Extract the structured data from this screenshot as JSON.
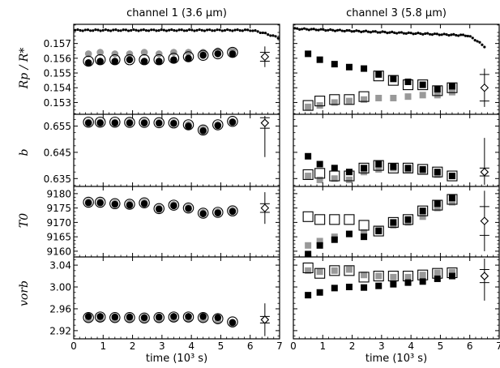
{
  "chart_data": {
    "type": "scatter",
    "x_ticks": [
      "0",
      "1",
      "2",
      "3",
      "4",
      "5",
      "6",
      "7"
    ],
    "xlim": [
      0,
      7
    ],
    "columns": [
      {
        "title": "channel 1 (3.6 μm)",
        "xlabel": "time (10³ s)",
        "rows": [
          {
            "ylabel": "Rp / R*",
            "ylim": [
              0.1522,
              0.1583
            ],
            "yticks": [
              0.153,
              0.154,
              0.155,
              0.156,
              0.157
            ],
            "ytick_labels": [
              "0.153",
              "0.154",
              "0.155",
              "0.156",
              "0.157"
            ],
            "x": [
              0.5,
              0.9,
              1.4,
              1.9,
              2.4,
              2.9,
              3.4,
              3.9,
              4.4,
              4.9,
              5.4
            ],
            "open_circle": [
              0.1558,
              0.1559,
              0.1559,
              0.1559,
              0.1559,
              0.1559,
              0.156,
              0.1561,
              0.1562,
              0.1563,
              0.1564
            ],
            "filled_black": [
              0.1557,
              0.1558,
              0.1558,
              0.1559,
              0.1558,
              0.1558,
              0.1559,
              0.156,
              0.1562,
              0.1563,
              0.1563
            ],
            "filled_gray": [
              0.1563,
              0.1564,
              0.1563,
              0.1563,
              0.1564,
              0.1563,
              0.1564,
              0.1564,
              0.1564,
              0.1565,
              0.1565
            ],
            "summary": {
              "x": 6.5,
              "y": 0.1561,
              "err": 0.0007,
              "err_inner": 0.0003
            },
            "light_curve": {
              "x_start": 0.05,
              "x_end": 6.95,
              "level": 0.1579,
              "drop_start": 6.0,
              "drop_to": 0.1574
            }
          },
          {
            "ylabel": "b",
            "ylim": [
              0.632,
              0.6595
            ],
            "yticks": [
              0.635,
              0.645,
              0.655
            ],
            "ytick_labels": [
              "0.635",
              "0.645",
              "0.655"
            ],
            "x": [
              0.5,
              0.9,
              1.4,
              1.9,
              2.4,
              2.9,
              3.4,
              3.9,
              4.4,
              4.9,
              5.4
            ],
            "open_circle": [
              0.6565,
              0.6565,
              0.6565,
              0.6564,
              0.6564,
              0.6563,
              0.6562,
              0.6555,
              0.6535,
              0.6555,
              0.6568
            ],
            "filled_black": [
              0.6562,
              0.6562,
              0.6562,
              0.6562,
              0.6562,
              0.6561,
              0.656,
              0.655,
              0.6532,
              0.6552,
              0.6565
            ],
            "filled_gray": [
              0.6565,
              0.6565,
              0.6565,
              0.6565,
              0.6565,
              0.6564,
              0.6563,
              0.6556,
              0.6538,
              0.6556,
              0.6567
            ],
            "summary": {
              "x": 6.5,
              "y": 0.6562,
              "err": 0.013,
              "err_inner": 0.002
            }
          },
          {
            "ylabel": "T0",
            "ylim": [
              9158.0,
              9182.5
            ],
            "yticks": [
              9160,
              9165,
              9170,
              9175,
              9180
            ],
            "ytick_labels": [
              "9160",
              "9165",
              "9170",
              "9175",
              "9180"
            ],
            "x": [
              0.5,
              0.9,
              1.4,
              1.9,
              2.4,
              2.9,
              3.4,
              3.9,
              4.4,
              4.9,
              5.4
            ],
            "open_circle": [
              9177.0,
              9177.0,
              9176.5,
              9176.3,
              9176.8,
              9174.8,
              9176.0,
              9175.0,
              9173.2,
              9173.5,
              9174.0
            ],
            "filled_black": [
              9176.8,
              9176.8,
              9176.3,
              9176.0,
              9176.5,
              9174.6,
              9175.8,
              9174.8,
              9173.0,
              9173.3,
              9173.8
            ],
            "filled_gray": [
              9177.2,
              9177.2,
              9176.7,
              9176.5,
              9177.0,
              9175.0,
              9176.2,
              9175.2,
              9173.4,
              9173.7,
              9174.2
            ],
            "summary": {
              "x": 6.5,
              "y": 9175.0,
              "err": 5.5,
              "err_inner": 1.5
            }
          },
          {
            "ylabel": "vorb",
            "ylim": [
              2.905,
              3.055
            ],
            "yticks": [
              2.92,
              2.96,
              3.0,
              3.04
            ],
            "ytick_labels": [
              "2.92",
              "2.96",
              "3.00",
              "3.04"
            ],
            "x": [
              0.5,
              0.9,
              1.4,
              1.9,
              2.4,
              2.9,
              3.4,
              3.9,
              4.4,
              4.9,
              5.4
            ],
            "open_circle": [
              2.944,
              2.945,
              2.944,
              2.944,
              2.943,
              2.944,
              2.945,
              2.945,
              2.944,
              2.942,
              2.936
            ],
            "filled_black": [
              2.946,
              2.946,
              2.945,
              2.945,
              2.944,
              2.945,
              2.946,
              2.946,
              2.946,
              2.944,
              2.935
            ],
            "filled_gray": [
              2.941,
              2.941,
              2.941,
              2.941,
              2.94,
              2.941,
              2.942,
              2.942,
              2.941,
              2.938,
              2.932
            ],
            "summary": {
              "x": 6.5,
              "y": 2.94,
              "err": 0.03,
              "err_inner": 0.006
            }
          }
        ]
      },
      {
        "title": "channel 3 (5.8 μm)",
        "xlabel": "time (10³ s)",
        "rows": [
          {
            "ylabel": "",
            "ylim": [
              0.1522,
              0.1583
            ],
            "yticks": [
              0.153,
              0.154,
              0.155,
              0.156,
              0.157
            ],
            "x": [
              0.5,
              0.9,
              1.4,
              1.9,
              2.4,
              2.9,
              3.4,
              3.9,
              4.4,
              4.9,
              5.4
            ],
            "open_square": [
              0.1528,
              0.1531,
              0.1532,
              0.1532,
              0.1534,
              0.1548,
              0.1545,
              0.1542,
              0.1542,
              0.1538,
              0.154
            ],
            "filled_black": [
              0.1563,
              0.1559,
              0.1556,
              0.1554,
              0.1553,
              0.1549,
              0.1546,
              0.1544,
              0.1542,
              0.1539,
              0.1541
            ],
            "filled_gray": [
              0.1527,
              0.1528,
              0.153,
              0.1531,
              0.1532,
              0.1533,
              0.1533,
              0.1534,
              0.1535,
              0.1535,
              0.1537
            ],
            "summary": {
              "x": 6.5,
              "y": 0.154,
              "err": 0.0013,
              "err_inner": 0.0009
            },
            "light_curve": {
              "x_start": 0.05,
              "x_end": 6.5,
              "level_start": 0.158,
              "level_end": 0.1575,
              "drop_start": 5.9,
              "drop_to": 0.1568
            }
          },
          {
            "ylabel": "",
            "ylim": [
              0.632,
              0.6595
            ],
            "yticks": [
              0.635,
              0.645,
              0.655
            ],
            "x": [
              0.5,
              0.9,
              1.4,
              1.9,
              2.4,
              2.9,
              3.4,
              3.9,
              4.4,
              4.9,
              5.4
            ],
            "open_square": [
              0.6365,
              0.637,
              0.636,
              0.636,
              0.639,
              0.64,
              0.639,
              0.639,
              0.6385,
              0.6375,
              0.636
            ],
            "filled_black": [
              0.6435,
              0.6405,
              0.639,
              0.6375,
              0.639,
              0.6405,
              0.6395,
              0.639,
              0.6385,
              0.6375,
              0.636
            ],
            "filled_gray": [
              0.636,
              0.6345,
              0.635,
              0.6345,
              0.6375,
              0.6385,
              0.639,
              0.6385,
              0.638,
              0.6365,
              0.636
            ],
            "summary": {
              "x": 6.5,
              "y": 0.6375,
              "err": 0.013,
              "err_inner": 0.0015
            }
          },
          {
            "ylabel": "",
            "ylim": [
              9158.0,
              9182.5
            ],
            "yticks": [
              9160,
              9165,
              9170,
              9175,
              9180
            ],
            "x": [
              0.5,
              0.9,
              1.4,
              1.9,
              2.4,
              2.9,
              3.4,
              3.9,
              4.4,
              4.9,
              5.4
            ],
            "open_square": [
              9172.0,
              9171.0,
              9171.0,
              9171.0,
              9169.0,
              9167.0,
              9170.0,
              9171.0,
              9174.0,
              9176.0,
              9178.0
            ],
            "filled_black": [
              9159.0,
              9162.0,
              9164.0,
              9166.0,
              9165.0,
              9167.0,
              9170.0,
              9171.0,
              9174.0,
              9176.5,
              9178.5
            ],
            "filled_gray": [
              9162.0,
              9163.5,
              9165.0,
              9166.0,
              9166.5,
              9167.5,
              9169.0,
              9170.0,
              9172.0,
              9175.0,
              9177.0
            ],
            "summary": {
              "x": 6.5,
              "y": 9170.5,
              "err": 10.5,
              "err_inner": 5.0
            }
          },
          {
            "ylabel": "",
            "ylim": [
              2.905,
              3.055
            ],
            "yticks": [
              2.92,
              2.96,
              3.0,
              3.04
            ],
            "x": [
              0.5,
              0.9,
              1.4,
              1.9,
              2.4,
              2.9,
              3.4,
              3.9,
              4.4,
              4.9,
              5.4
            ],
            "open_square": [
              3.035,
              3.025,
              3.03,
              3.03,
              3.018,
              3.02,
              3.02,
              3.02,
              3.022,
              3.025,
              3.026
            ],
            "filled_black": [
              2.985,
              2.99,
              2.998,
              3.0,
              2.999,
              3.002,
              3.005,
              3.008,
              3.01,
              3.015,
              3.02
            ],
            "filled_gray": [
              3.03,
              3.028,
              3.03,
              3.032,
              3.022,
              3.02,
              3.018,
              3.018,
              3.022,
              3.026,
              3.027
            ],
            "summary": {
              "x": 6.5,
              "y": 3.02,
              "err": 0.045,
              "err_inner": 0.012
            }
          }
        ]
      }
    ]
  }
}
